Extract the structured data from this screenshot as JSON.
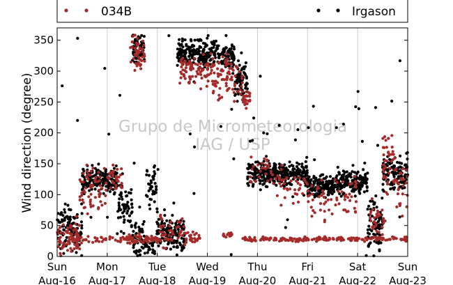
{
  "chart_data": {
    "type": "scatter",
    "ylabel": "Wind direction (degree)",
    "ylim": [
      0,
      370
    ],
    "yticks": [
      0,
      50,
      100,
      150,
      200,
      250,
      300,
      350
    ],
    "xlim": [
      0,
      7
    ],
    "xticks": [
      {
        "x": 0,
        "line1": "Sun",
        "line2": "Aug-16"
      },
      {
        "x": 1,
        "line1": "Mon",
        "line2": "Aug-17"
      },
      {
        "x": 2,
        "line1": "Tue",
        "line2": "Aug-18"
      },
      {
        "x": 3,
        "line1": "Wed",
        "line2": "Aug-19"
      },
      {
        "x": 4,
        "line1": "Thu",
        "line2": "Aug-20"
      },
      {
        "x": 5,
        "line1": "Fri",
        "line2": "Aug-21"
      },
      {
        "x": 6,
        "line1": "Sat",
        "line2": "Aug-22"
      },
      {
        "x": 7,
        "line1": "Sun",
        "line2": "Aug-23"
      }
    ],
    "grid": "vertical",
    "legend_position": "top",
    "watermark": [
      "Grupo de Micrometeorologia",
      "IAG / USP"
    ],
    "series": [
      {
        "name": "034B",
        "color": "#a52a2a",
        "segments": [
          {
            "x0": 0.0,
            "x1": 0.45,
            "y": 30,
            "jitter": 22,
            "n": 70
          },
          {
            "x0": 0.45,
            "x1": 1.0,
            "y": 110,
            "jitter": 35,
            "n": 60
          },
          {
            "x0": 0.3,
            "x1": 1.3,
            "y": 28,
            "jitter": 4,
            "n": 40
          },
          {
            "x0": 1.0,
            "x1": 1.3,
            "y": 125,
            "jitter": 18,
            "n": 30
          },
          {
            "x0": 1.3,
            "x1": 1.95,
            "y": 28,
            "jitter": 6,
            "n": 50
          },
          {
            "x0": 1.45,
            "x1": 1.75,
            "y": 330,
            "jitter": 25,
            "n": 45
          },
          {
            "x0": 1.75,
            "x1": 2.05,
            "y": 27,
            "jitter": 4,
            "n": 25
          },
          {
            "x0": 2.05,
            "x1": 2.6,
            "y": 40,
            "jitter": 25,
            "n": 50
          },
          {
            "x0": 2.6,
            "x1": 2.85,
            "y": 32,
            "jitter": 8,
            "n": 20
          },
          {
            "x0": 2.45,
            "x1": 3.1,
            "y": 300,
            "jitter": 22,
            "n": 80
          },
          {
            "x0": 3.1,
            "x1": 3.7,
            "y": 290,
            "jitter": 30,
            "n": 80
          },
          {
            "x0": 3.7,
            "x1": 3.85,
            "y": 255,
            "jitter": 10,
            "n": 25
          },
          {
            "x0": 3.3,
            "x1": 3.55,
            "y": 34,
            "jitter": 5,
            "n": 12
          },
          {
            "x0": 3.7,
            "x1": 7.0,
            "y": 28,
            "jitter": 3,
            "n": 190
          },
          {
            "x0": 3.85,
            "x1": 4.3,
            "y": 140,
            "jitter": 18,
            "n": 25
          },
          {
            "x0": 4.3,
            "x1": 5.0,
            "y": 115,
            "jitter": 25,
            "n": 40
          },
          {
            "x0": 5.0,
            "x1": 5.7,
            "y": 95,
            "jitter": 30,
            "n": 40
          },
          {
            "x0": 5.7,
            "x1": 6.0,
            "y": 95,
            "jitter": 25,
            "n": 25
          },
          {
            "x0": 6.25,
            "x1": 6.55,
            "y": 55,
            "jitter": 25,
            "n": 30
          },
          {
            "x0": 6.5,
            "x1": 6.75,
            "y": 160,
            "jitter": 45,
            "n": 40
          },
          {
            "x0": 6.75,
            "x1": 7.0,
            "y": 110,
            "jitter": 35,
            "n": 25
          }
        ]
      },
      {
        "name": "Irgason",
        "color": "#000000",
        "segments": [
          {
            "x0": 0.0,
            "x1": 0.5,
            "y": 45,
            "jitter": 30,
            "n": 110
          },
          {
            "x0": 0.5,
            "x1": 1.2,
            "y": 125,
            "jitter": 18,
            "n": 170
          },
          {
            "x0": 1.2,
            "x1": 1.5,
            "y": 80,
            "jitter": 35,
            "n": 60
          },
          {
            "x0": 1.5,
            "x1": 1.75,
            "y": 30,
            "jitter": 25,
            "n": 50
          },
          {
            "x0": 1.5,
            "x1": 1.75,
            "y": 335,
            "jitter": 22,
            "n": 55
          },
          {
            "x0": 1.75,
            "x1": 1.95,
            "y": 15,
            "jitter": 12,
            "n": 30
          },
          {
            "x0": 1.78,
            "x1": 1.98,
            "y": 110,
            "jitter": 30,
            "n": 40
          },
          {
            "x0": 1.98,
            "x1": 2.15,
            "y": 40,
            "jitter": 25,
            "n": 40
          },
          {
            "x0": 2.15,
            "x1": 2.55,
            "y": 35,
            "jitter": 25,
            "n": 110
          },
          {
            "x0": 2.4,
            "x1": 3.2,
            "y": 330,
            "jitter": 18,
            "n": 200
          },
          {
            "x0": 3.2,
            "x1": 3.55,
            "y": 325,
            "jitter": 20,
            "n": 80
          },
          {
            "x0": 3.55,
            "x1": 3.8,
            "y": 285,
            "jitter": 30,
            "n": 70
          },
          {
            "x0": 3.8,
            "x1": 4.4,
            "y": 135,
            "jitter": 18,
            "n": 150
          },
          {
            "x0": 4.4,
            "x1": 5.0,
            "y": 135,
            "jitter": 15,
            "n": 160
          },
          {
            "x0": 5.0,
            "x1": 5.6,
            "y": 115,
            "jitter": 15,
            "n": 150
          },
          {
            "x0": 5.6,
            "x1": 6.2,
            "y": 120,
            "jitter": 18,
            "n": 150
          },
          {
            "x0": 6.2,
            "x1": 6.5,
            "y": 50,
            "jitter": 35,
            "n": 80
          },
          {
            "x0": 6.5,
            "x1": 7.0,
            "y": 135,
            "jitter": 25,
            "n": 120
          },
          {
            "x0": 0.0,
            "x1": 7.0,
            "y": 185,
            "jitter": 175,
            "n": 60
          }
        ]
      }
    ]
  }
}
